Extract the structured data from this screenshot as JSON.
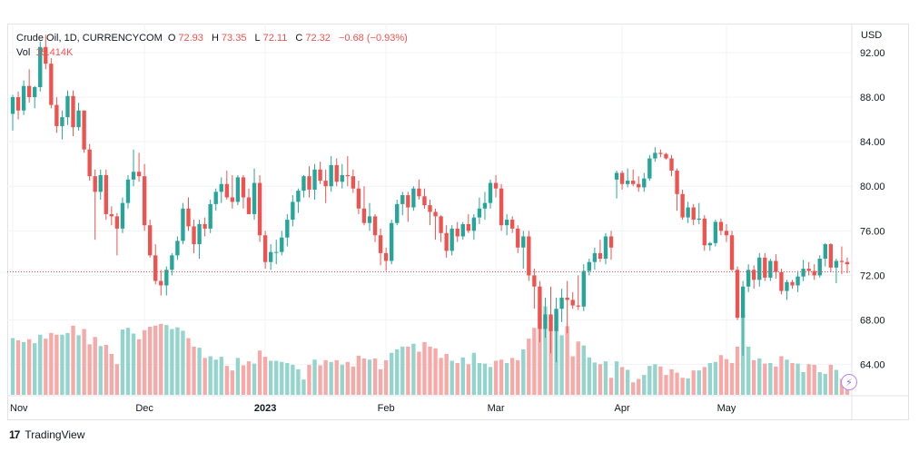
{
  "legend": {
    "symbol": "Crude Oil, 1D, CURRENCYCOM",
    "o_label": "O",
    "o_value": "72.93",
    "h_label": "H",
    "h_value": "73.35",
    "l_label": "L",
    "l_value": "72.11",
    "c_label": "C",
    "c_value": "72.32",
    "change": "−0.68 (−0.93%)",
    "vol_label": "Vol",
    "vol_value": "15.414K"
  },
  "currency": "USD",
  "brand": {
    "logo_text": "17",
    "name": "TradingView"
  },
  "colors": {
    "up": "#26a69a",
    "down": "#ef5350",
    "up_vol": "#93d4cd",
    "down_vol": "#f7a9a7",
    "grid": "#f0f3fa",
    "last_price_line": "#ef5350"
  },
  "chart_data": {
    "type": "candlestick",
    "title": "Crude Oil, 1D, CURRENCYCOM",
    "ylabel": "USD",
    "ylim": [
      61.2,
      94.6
    ],
    "y_ticks": [
      64,
      68,
      72,
      76,
      80,
      84,
      88,
      92
    ],
    "y_tick_labels": [
      "64.00",
      "68.00",
      "72.00",
      "76.00",
      "80.00",
      "84.00",
      "88.00",
      "92.00"
    ],
    "x_labels": [
      {
        "label": "Nov",
        "index": 0,
        "bold": false
      },
      {
        "label": "Dec",
        "index": 24,
        "bold": false
      },
      {
        "label": "2023",
        "index": 46,
        "bold": true
      },
      {
        "label": "Feb",
        "index": 68,
        "bold": false
      },
      {
        "label": "Mar",
        "index": 88,
        "bold": false
      },
      {
        "label": "Apr",
        "index": 111,
        "bold": false
      },
      {
        "label": "May",
        "index": 130,
        "bold": false
      }
    ],
    "last_price": 72.32,
    "grid": true,
    "candles": [
      [
        86.5,
        88.2,
        85.0,
        88.0,
        10.0
      ],
      [
        88.0,
        88.5,
        86.0,
        86.8,
        9.6
      ],
      [
        86.8,
        89.5,
        86.4,
        89.0,
        9.3
      ],
      [
        89.0,
        90.5,
        87.5,
        88.0,
        9.8
      ],
      [
        88.0,
        89.0,
        87.0,
        88.9,
        9.1
      ],
      [
        88.9,
        93.0,
        88.5,
        92.5,
        10.6
      ],
      [
        92.5,
        93.6,
        90.5,
        91.0,
        9.9
      ],
      [
        91.0,
        91.5,
        87.0,
        87.3,
        10.9
      ],
      [
        87.3,
        88.0,
        84.8,
        85.4,
        10.6
      ],
      [
        85.4,
        86.8,
        84.2,
        86.2,
        10.6
      ],
      [
        86.2,
        88.6,
        85.5,
        88.1,
        10.9
      ],
      [
        88.1,
        88.6,
        84.5,
        85.3,
        12.2
      ],
      [
        85.3,
        87.5,
        85.0,
        86.8,
        10.5
      ],
      [
        86.8,
        86.8,
        83.0,
        83.3,
        11.6
      ],
      [
        83.3,
        83.8,
        80.5,
        80.9,
        8.9
      ],
      [
        80.9,
        81.5,
        75.2,
        79.5,
        10.2
      ],
      [
        79.5,
        81.5,
        78.8,
        81.0,
        8.6
      ],
      [
        81.0,
        81.5,
        77.0,
        77.5,
        8.8
      ],
      [
        77.5,
        78.2,
        76.5,
        77.3,
        7.2
      ],
      [
        77.3,
        77.6,
        73.8,
        76.2,
        5.4
      ],
      [
        76.2,
        79.0,
        75.8,
        78.5,
        11.5
      ],
      [
        78.5,
        81.0,
        78.0,
        80.6,
        11.8
      ],
      [
        80.6,
        83.3,
        80.0,
        81.3,
        10.8
      ],
      [
        81.3,
        83.0,
        80.4,
        80.9,
        9.8
      ],
      [
        80.9,
        82.0,
        76.0,
        76.5,
        11.4
      ],
      [
        76.5,
        77.0,
        73.6,
        73.8,
        12.0
      ],
      [
        73.8,
        74.8,
        71.2,
        71.5,
        12.2
      ],
      [
        71.5,
        72.5,
        70.2,
        71.1,
        12.5
      ],
      [
        71.1,
        72.8,
        70.2,
        72.5,
        12.3
      ],
      [
        72.5,
        74.0,
        72.0,
        73.8,
        11.6
      ],
      [
        73.8,
        75.5,
        73.4,
        75.1,
        11.9
      ],
      [
        75.1,
        78.5,
        74.8,
        78.0,
        11.3
      ],
      [
        78.0,
        79.0,
        76.0,
        76.4,
        10.0
      ],
      [
        76.4,
        77.0,
        74.0,
        74.8,
        8.5
      ],
      [
        74.8,
        77.0,
        73.5,
        76.6,
        8.3
      ],
      [
        76.6,
        77.2,
        75.5,
        76.2,
        6.5
      ],
      [
        76.2,
        78.8,
        75.8,
        78.4,
        6.8
      ],
      [
        78.4,
        79.8,
        77.8,
        79.5,
        6.2
      ],
      [
        79.5,
        80.8,
        78.5,
        80.2,
        6.7
      ],
      [
        80.2,
        81.4,
        78.8,
        79.0,
        5.1
      ],
      [
        79.0,
        81.0,
        78.0,
        78.6,
        4.3
      ],
      [
        78.6,
        81.0,
        78.3,
        80.8,
        6.5
      ],
      [
        80.8,
        81.0,
        78.0,
        79.0,
        5.2
      ],
      [
        79.0,
        79.8,
        77.5,
        77.5,
        5.9
      ],
      [
        77.5,
        81.6,
        77.0,
        80.3,
        5.5
      ],
      [
        80.3,
        81.0,
        75.0,
        75.6,
        7.8
      ],
      [
        75.6,
        76.0,
        72.6,
        73.2,
        6.7
      ],
      [
        73.2,
        74.8,
        72.5,
        74.1,
        6.0
      ],
      [
        74.1,
        75.2,
        73.0,
        74.1,
        6.0
      ],
      [
        74.1,
        76.0,
        73.8,
        75.4,
        5.8
      ],
      [
        75.4,
        77.5,
        74.6,
        77.0,
        5.6
      ],
      [
        77.0,
        79.2,
        76.4,
        78.6,
        5.3
      ],
      [
        78.6,
        79.8,
        77.6,
        79.6,
        4.5
      ],
      [
        79.6,
        81.0,
        79.0,
        80.9,
        2.7
      ],
      [
        80.9,
        81.8,
        79.0,
        79.7,
        5.3
      ],
      [
        79.7,
        82.0,
        78.8,
        81.5,
        6.2
      ],
      [
        81.5,
        82.2,
        80.2,
        80.5,
        5.2
      ],
      [
        80.5,
        81.5,
        78.5,
        80.0,
        6.1
      ],
      [
        80.0,
        82.7,
        79.5,
        81.9,
        5.8
      ],
      [
        81.9,
        82.5,
        80.0,
        80.4,
        6.1
      ],
      [
        80.4,
        82.0,
        79.8,
        81.0,
        5.3
      ],
      [
        81.0,
        82.7,
        80.0,
        80.9,
        5.8
      ],
      [
        80.9,
        81.5,
        79.4,
        79.8,
        5.0
      ],
      [
        79.8,
        80.5,
        77.5,
        78.0,
        6.9
      ],
      [
        78.0,
        80.0,
        76.5,
        76.7,
        6.4
      ],
      [
        76.7,
        78.5,
        76.0,
        77.3,
        6.2
      ],
      [
        77.3,
        77.5,
        75.0,
        75.6,
        6.4
      ],
      [
        75.6,
        76.2,
        72.9,
        74.0,
        4.5
      ],
      [
        74.0,
        74.5,
        72.4,
        73.3,
        6.1
      ],
      [
        73.3,
        77.0,
        73.0,
        76.7,
        7.4
      ],
      [
        76.7,
        78.8,
        76.5,
        78.4,
        8.0
      ],
      [
        78.4,
        79.5,
        77.4,
        79.2,
        8.5
      ],
      [
        79.2,
        79.5,
        76.8,
        78.1,
        8.5
      ],
      [
        78.1,
        80.0,
        77.8,
        79.8,
        9.0
      ],
      [
        79.8,
        80.6,
        78.8,
        79.1,
        7.6
      ],
      [
        79.1,
        79.8,
        78.0,
        78.3,
        9.3
      ],
      [
        78.3,
        78.8,
        76.5,
        77.7,
        8.5
      ],
      [
        77.7,
        78.0,
        75.2,
        77.3,
        8.2
      ],
      [
        77.3,
        77.4,
        75.0,
        75.8,
        6.5
      ],
      [
        75.8,
        76.5,
        73.6,
        74.2,
        7.2
      ],
      [
        74.2,
        76.5,
        73.8,
        76.2,
        6.0
      ],
      [
        76.2,
        76.8,
        75.0,
        75.5,
        5.6
      ],
      [
        75.5,
        76.8,
        75.2,
        76.6,
        6.6
      ],
      [
        76.6,
        77.5,
        75.8,
        76.0,
        5.4
      ],
      [
        76.0,
        77.5,
        75.2,
        77.2,
        7.4
      ],
      [
        77.2,
        79.0,
        76.6,
        78.0,
        5.6
      ],
      [
        78.0,
        79.5,
        77.0,
        78.5,
        5.5
      ],
      [
        78.5,
        80.6,
        78.0,
        80.3,
        4.9
      ],
      [
        80.3,
        81.0,
        79.0,
        79.8,
        6.0
      ],
      [
        79.8,
        80.2,
        76.0,
        76.5,
        6.2
      ],
      [
        76.5,
        77.5,
        75.6,
        77.0,
        5.6
      ],
      [
        77.0,
        77.3,
        75.8,
        76.2,
        6.5
      ],
      [
        76.2,
        76.5,
        74.0,
        74.5,
        6.1
      ],
      [
        74.5,
        76.0,
        72.6,
        75.5,
        8.0
      ],
      [
        75.5,
        76.0,
        71.5,
        72.0,
        9.9
      ],
      [
        72.0,
        72.6,
        69.0,
        71.0,
        11.8
      ],
      [
        71.0,
        71.5,
        66.0,
        67.2,
        15.4
      ],
      [
        67.2,
        70.0,
        66.4,
        68.5,
        15.6
      ],
      [
        68.5,
        71.0,
        65.0,
        67.0,
        13.8
      ],
      [
        67.0,
        70.0,
        64.2,
        69.0,
        14.6
      ],
      [
        69.0,
        70.8,
        67.8,
        70.0,
        10.5
      ],
      [
        70.0,
        71.5,
        66.8,
        69.8,
        12.1
      ],
      [
        69.8,
        70.5,
        69.0,
        69.3,
        6.8
      ],
      [
        69.3,
        72.0,
        68.9,
        69.2,
        9.4
      ],
      [
        69.2,
        73.0,
        68.8,
        72.4,
        8.7
      ],
      [
        72.4,
        73.5,
        72.0,
        73.2,
        6.6
      ],
      [
        73.2,
        74.5,
        72.5,
        74.0,
        5.7
      ],
      [
        74.0,
        75.2,
        73.2,
        73.5,
        5.4
      ],
      [
        73.5,
        75.8,
        73.0,
        75.5,
        5.9
      ],
      [
        75.5,
        76.0,
        73.4,
        74.5,
        3.0
      ],
      [
        80.6,
        81.4,
        78.9,
        81.2,
        5.9
      ],
      [
        81.2,
        81.4,
        79.7,
        80.2,
        4.9
      ],
      [
        80.2,
        81.6,
        79.9,
        80.5,
        4.4
      ],
      [
        80.5,
        81.5,
        80.0,
        80.2,
        2.2
      ],
      [
        80.2,
        80.9,
        79.5,
        79.9,
        2.8
      ],
      [
        79.9,
        81.2,
        79.5,
        80.7,
        3.5
      ],
      [
        80.7,
        82.8,
        80.5,
        82.5,
        5.1
      ],
      [
        82.5,
        83.5,
        82.2,
        83.0,
        5.4
      ],
      [
        83.0,
        83.3,
        82.6,
        82.9,
        5.0
      ],
      [
        82.9,
        83.0,
        82.4,
        82.5,
        3.5
      ],
      [
        82.5,
        82.8,
        80.9,
        81.4,
        4.5
      ],
      [
        81.4,
        81.6,
        77.8,
        79.3,
        3.9
      ],
      [
        79.3,
        79.7,
        77.0,
        77.2,
        3.0
      ],
      [
        77.2,
        78.6,
        76.7,
        78.1,
        2.9
      ],
      [
        78.1,
        78.4,
        76.5,
        77.0,
        4.3
      ],
      [
        77.0,
        78.5,
        76.6,
        77.1,
        4.3
      ],
      [
        77.1,
        77.4,
        74.2,
        74.7,
        4.9
      ],
      [
        74.7,
        75.0,
        74.2,
        74.9,
        5.6
      ],
      [
        74.9,
        77.0,
        74.6,
        76.8,
        5.8
      ],
      [
        76.8,
        77.1,
        75.6,
        76.0,
        7.0
      ],
      [
        76.0,
        76.6,
        75.0,
        75.6,
        6.3
      ],
      [
        75.6,
        76.0,
        72.4,
        72.5,
        5.6
      ],
      [
        72.5,
        72.8,
        68.0,
        68.2,
        8.5
      ],
      [
        68.2,
        71.5,
        64.8,
        71.0,
        14.2
      ],
      [
        71.0,
        73.0,
        70.5,
        72.5,
        8.5
      ],
      [
        72.5,
        72.9,
        70.8,
        71.6,
        6.1
      ],
      [
        71.6,
        74.0,
        71.0,
        73.6,
        6.4
      ],
      [
        73.6,
        74.0,
        71.5,
        71.8,
        5.5
      ],
      [
        71.8,
        73.5,
        71.5,
        73.3,
        5.6
      ],
      [
        73.3,
        73.9,
        71.7,
        72.3,
        5.0
      ],
      [
        72.3,
        72.6,
        70.3,
        70.6,
        6.8
      ],
      [
        70.6,
        71.6,
        69.8,
        71.4,
        6.2
      ],
      [
        71.4,
        71.6,
        70.8,
        71.1,
        5.6
      ],
      [
        71.1,
        72.4,
        70.5,
        71.9,
        5.5
      ],
      [
        71.9,
        73.4,
        71.5,
        72.6,
        4.0
      ],
      [
        72.6,
        73.2,
        72.0,
        72.4,
        5.4
      ],
      [
        72.4,
        73.0,
        71.6,
        72.0,
        5.3
      ],
      [
        72.0,
        73.8,
        71.8,
        73.5,
        4.0
      ],
      [
        73.5,
        74.9,
        72.8,
        74.8,
        3.7
      ],
      [
        74.8,
        74.9,
        72.3,
        72.7,
        5.3
      ],
      [
        72.7,
        73.5,
        71.3,
        73.3,
        4.4
      ],
      [
        73.3,
        74.6,
        72.1,
        73.2,
        2.8
      ],
      [
        73.2,
        73.6,
        72.2,
        73.0,
        3.0
      ]
    ]
  }
}
